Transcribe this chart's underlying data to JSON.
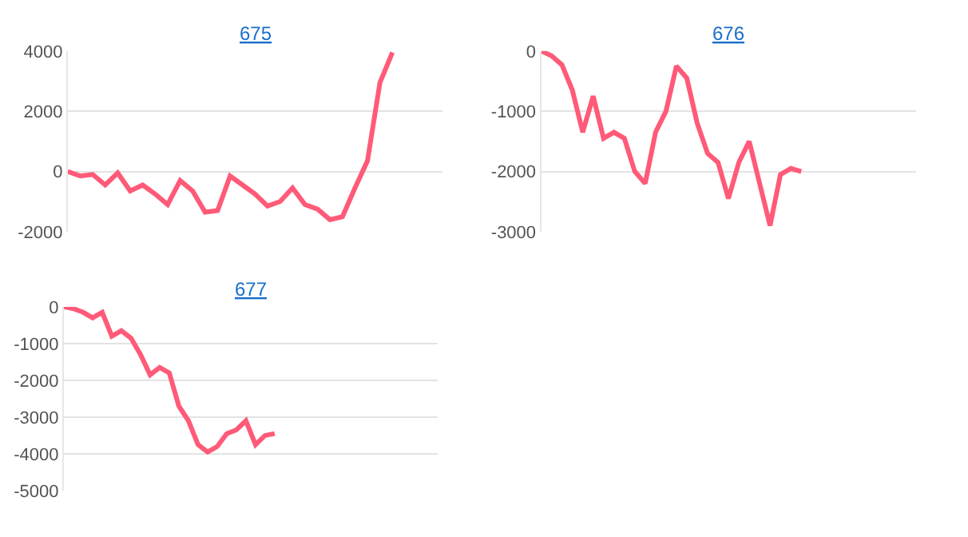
{
  "chart_data": [
    {
      "type": "line",
      "title": "675",
      "categories": [
        null,
        null,
        null,
        null,
        null,
        null,
        null,
        null,
        null,
        null,
        null,
        null,
        null,
        null,
        null,
        null,
        null,
        null,
        null,
        null,
        null,
        null,
        null,
        null,
        null,
        null,
        null,
        null,
        null,
        null,
        null
      ],
      "series": [
        {
          "color": "#ff5a78",
          "values": [
            0,
            -150,
            -100,
            -450,
            -50,
            -650,
            -450,
            -750,
            -1100,
            -300,
            -650,
            -1350,
            -1300,
            -150,
            -450,
            -750,
            -1150,
            -1000,
            -550,
            -1100,
            -1250,
            -1600,
            -1500,
            -550,
            350,
            2950,
            3950,
            null,
            null,
            null,
            null
          ]
        }
      ],
      "ylim": [
        -2000,
        4000
      ],
      "yticks": [
        -2000,
        0,
        2000,
        4000
      ],
      "grid": "y",
      "tick_labels": "y",
      "marker": "none",
      "line_style": "solid"
    },
    {
      "type": "line",
      "title": "676",
      "categories": [
        null,
        null,
        null,
        null,
        null,
        null,
        null,
        null,
        null,
        null,
        null,
        null,
        null,
        null,
        null,
        null,
        null,
        null,
        null,
        null,
        null,
        null,
        null,
        null,
        null,
        null,
        null,
        null,
        null,
        null,
        null,
        null,
        null,
        null,
        null,
        null,
        null
      ],
      "series": [
        {
          "color": "#ff5a78",
          "values": [
            0,
            -80,
            -230,
            -650,
            -1350,
            -750,
            -1450,
            -1350,
            -1450,
            -2000,
            -2200,
            -1350,
            -1000,
            -250,
            -450,
            -1200,
            -1700,
            -1850,
            -2450,
            -1850,
            -1500,
            -2200,
            -2900,
            -2050,
            -1950,
            -2000,
            null,
            null,
            null,
            null,
            null,
            null,
            null,
            null,
            null,
            null,
            null
          ]
        }
      ],
      "ylim": [
        -3000,
        0
      ],
      "yticks": [
        -3000,
        -2000,
        -1000,
        0
      ],
      "grid": "y",
      "tick_labels": "y",
      "marker": "none",
      "line_style": "solid"
    },
    {
      "type": "line",
      "title": "677",
      "categories": [
        null,
        null,
        null,
        null,
        null,
        null,
        null,
        null,
        null,
        null,
        null,
        null,
        null,
        null,
        null,
        null,
        null,
        null,
        null,
        null,
        null,
        null,
        null,
        null,
        null,
        null,
        null,
        null,
        null,
        null,
        null,
        null,
        null,
        null,
        null,
        null,
        null,
        null,
        null,
        null
      ],
      "series": [
        {
          "color": "#ff5a78",
          "values": [
            0,
            -50,
            -150,
            -300,
            -150,
            -800,
            -650,
            -850,
            -1300,
            -1850,
            -1650,
            -1800,
            -2700,
            -3100,
            -3750,
            -3950,
            -3800,
            -3450,
            -3350,
            -3100,
            -3750,
            -3500,
            -3450,
            null,
            null,
            null,
            null,
            null,
            null,
            null,
            null,
            null,
            null,
            null,
            null,
            null,
            null,
            null,
            null,
            null
          ]
        }
      ],
      "ylim": [
        -5000,
        0
      ],
      "yticks": [
        -5000,
        -4000,
        -3000,
        -2000,
        -1000,
        0
      ],
      "grid": "y",
      "tick_labels": "y",
      "marker": "none",
      "line_style": "solid"
    }
  ]
}
